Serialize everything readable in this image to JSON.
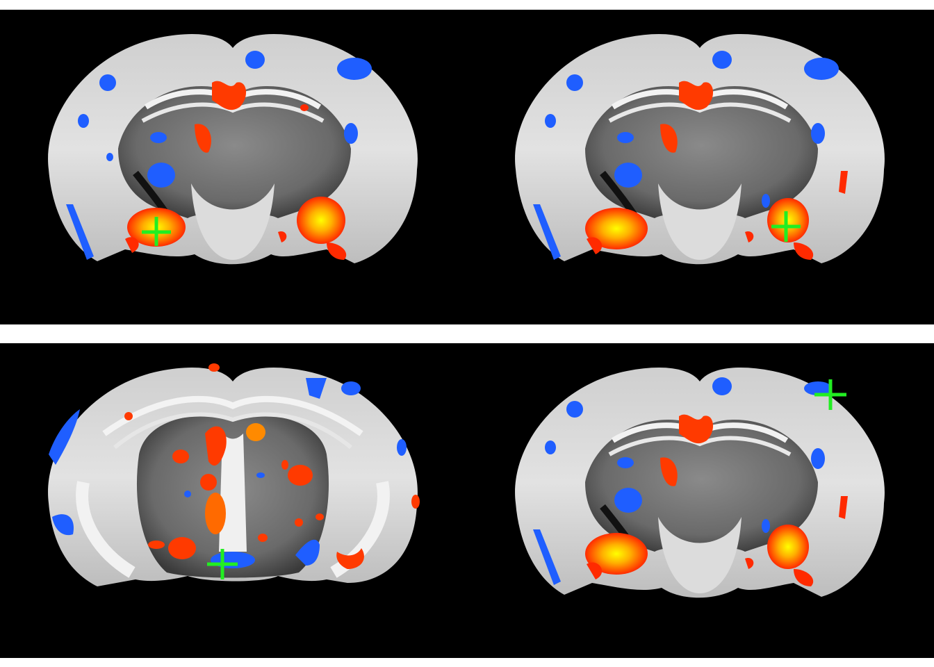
{
  "figure": {
    "rows": [
      {
        "id": "top",
        "slices": [
          {
            "id": "slice-1",
            "section": "posterior",
            "crosshair": true
          },
          {
            "id": "slice-2",
            "section": "posterior",
            "crosshair": true
          }
        ]
      },
      {
        "id": "bottom",
        "slices": [
          {
            "id": "slice-3",
            "section": "anterior",
            "crosshair": true
          },
          {
            "id": "slice-4",
            "section": "posterior",
            "crosshair": true
          }
        ]
      }
    ],
    "overlay_colors": {
      "positive_low": "#ff2a00",
      "positive_mid": "#ff8a00",
      "positive_high": "#ffff00",
      "negative": "#1f5eff",
      "crosshair": "#22ee22"
    },
    "background_color": "#000000",
    "separator_color": "#ffffff"
  }
}
